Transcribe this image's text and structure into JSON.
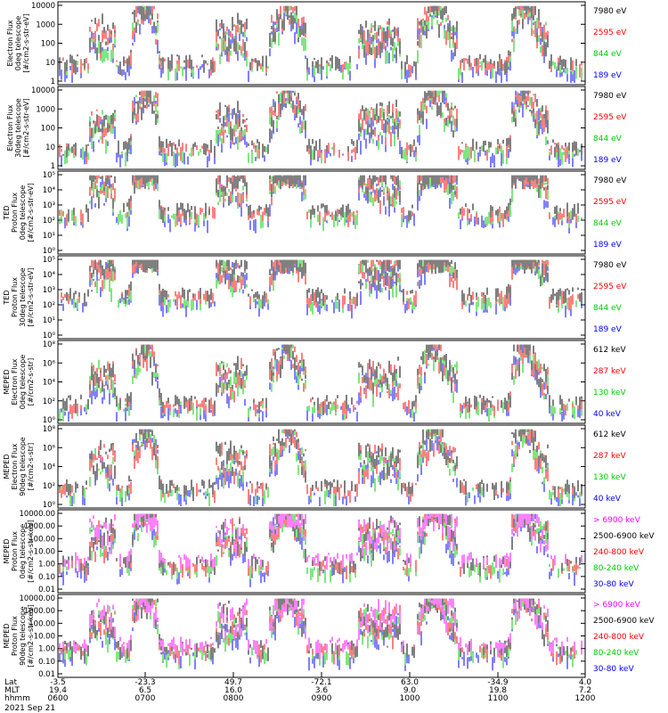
{
  "chart_data": {
    "type": "line",
    "date_label": "2021 Sep 21",
    "orbit_axis": {
      "row_labels": [
        "Lat",
        "MLT",
        "hhmm"
      ],
      "columns": [
        {
          "lat": "-3.5",
          "mlt": "19.4",
          "hhmm": "0600"
        },
        {
          "lat": "-23.3",
          "mlt": "6.5",
          "hhmm": "0700"
        },
        {
          "lat": "49.7",
          "mlt": "16.0",
          "hhmm": "0800"
        },
        {
          "lat": "-72.1",
          "mlt": "3.6",
          "hhmm": "0900"
        },
        {
          "lat": "63.0",
          "mlt": "9.0",
          "hhmm": "1000"
        },
        {
          "lat": "-34.9",
          "mlt": "19.8",
          "hhmm": "1100"
        },
        {
          "lat": "4.0",
          "mlt": "7.2",
          "hhmm": "1200"
        }
      ]
    },
    "panels": [
      {
        "ylabel": [
          "Electron Flux",
          "0deg telescope",
          "[#/cm2-s-str-eV]"
        ],
        "ytick_labels": [
          "10000",
          "1000",
          "100",
          "10",
          "1"
        ],
        "ylim": [
          1,
          10000
        ],
        "log": true,
        "legend": [
          {
            "text": "7980 eV",
            "color": "#000000"
          },
          {
            "text": "2595 eV",
            "color": "#ff0000"
          },
          {
            "text": "844 eV",
            "color": "#00cc00"
          },
          {
            "text": "189 eV",
            "color": "#0000ff"
          }
        ]
      },
      {
        "ylabel": [
          "Electron Flux",
          "30deg telescope",
          "[#/cm2-s-str-eV]"
        ],
        "ytick_labels": [
          "10000",
          "1000",
          "100",
          "10",
          "1"
        ],
        "ylim": [
          1,
          10000
        ],
        "log": true,
        "legend": [
          {
            "text": "7980 eV",
            "color": "#000000"
          },
          {
            "text": "2595 eV",
            "color": "#ff0000"
          },
          {
            "text": "844 eV",
            "color": "#00cc00"
          },
          {
            "text": "189 eV",
            "color": "#0000ff"
          }
        ]
      },
      {
        "ylabel": [
          "TED",
          "Proton Flux",
          "0deg telescope",
          "[#/cm2-s-str-eV]"
        ],
        "ytick_labels": [
          "10⁵",
          "10⁴",
          "10³",
          "10²",
          "10¹",
          "10⁰"
        ],
        "ylim": [
          1,
          100000
        ],
        "log": true,
        "legend": [
          {
            "text": "7980 eV",
            "color": "#000000"
          },
          {
            "text": "2595 eV",
            "color": "#ff0000"
          },
          {
            "text": "844 eV",
            "color": "#00cc00"
          },
          {
            "text": "189 eV",
            "color": "#0000ff"
          }
        ]
      },
      {
        "ylabel": [
          "TED",
          "Proton Flux",
          "30deg telescope",
          "[#/cm2-s-str-eV]"
        ],
        "ytick_labels": [
          "10⁵",
          "10⁴",
          "10³",
          "10²",
          "10¹",
          "10⁰"
        ],
        "ylim": [
          1,
          100000
        ],
        "log": true,
        "legend": [
          {
            "text": "7980 eV",
            "color": "#000000"
          },
          {
            "text": "2595 eV",
            "color": "#ff0000"
          },
          {
            "text": "844 eV",
            "color": "#00cc00"
          },
          {
            "text": "189 eV",
            "color": "#0000ff"
          }
        ]
      },
      {
        "ylabel": [
          "MEPED",
          "Electron Flux",
          "0deg telescope",
          "[#/cm2-s-str]"
        ],
        "ytick_labels": [
          "10⁸",
          "10⁶",
          "10⁴",
          "10²",
          "10⁰"
        ],
        "ylim": [
          1,
          100000000
        ],
        "log": true,
        "legend": [
          {
            "text": "612 keV",
            "color": "#000000"
          },
          {
            "text": "287 keV",
            "color": "#ff0000"
          },
          {
            "text": "130 keV",
            "color": "#00cc00"
          },
          {
            "text": "40 keV",
            "color": "#0000ff"
          }
        ]
      },
      {
        "ylabel": [
          "MEPED",
          "Electron Flux",
          "90deg telescope",
          "[#/cm2-s-str]"
        ],
        "ytick_labels": [
          "10⁸",
          "10⁶",
          "10⁴",
          "10²",
          "10⁰"
        ],
        "ylim": [
          1,
          100000000
        ],
        "log": true,
        "legend": [
          {
            "text": "612 keV",
            "color": "#000000"
          },
          {
            "text": "287 keV",
            "color": "#ff0000"
          },
          {
            "text": "130 keV",
            "color": "#00cc00"
          },
          {
            "text": "40 keV",
            "color": "#0000ff"
          }
        ]
      },
      {
        "ylabel": [
          "MEPED",
          "Proton Flux",
          "0deg telescope",
          "[#/cm2-s-str-keV]"
        ],
        "ytick_labels": [
          "10000.00",
          "1000.00",
          "100.00",
          "10.00",
          "1.00",
          "0.10",
          "0.01"
        ],
        "ylim": [
          0.01,
          10000
        ],
        "log": true,
        "legend": [
          {
            "text": "> 6900 keV",
            "color": "#ff00ff"
          },
          {
            "text": "2500-6900 keV",
            "color": "#000000"
          },
          {
            "text": "240-800 keV",
            "color": "#ff0000"
          },
          {
            "text": "80-240 keV",
            "color": "#00cc00"
          },
          {
            "text": "30-80 keV",
            "color": "#0000ff"
          }
        ]
      },
      {
        "ylabel": [
          "MEPED",
          "Proton Flux",
          "90deg telescope",
          "[#/cm2-s-str-keV]"
        ],
        "ytick_labels": [
          "10000.00",
          "1000.00",
          "100.00",
          "10.00",
          "1.00",
          "0.10",
          "0.01"
        ],
        "ylim": [
          0.01,
          10000
        ],
        "log": true,
        "legend": [
          {
            "text": "> 6900 keV",
            "color": "#ff00ff"
          },
          {
            "text": "2500-6900 keV",
            "color": "#000000"
          },
          {
            "text": "240-800 keV",
            "color": "#ff0000"
          },
          {
            "text": "80-240 keV",
            "color": "#00cc00"
          },
          {
            "text": "30-80 keV",
            "color": "#0000ff"
          }
        ]
      }
    ]
  }
}
